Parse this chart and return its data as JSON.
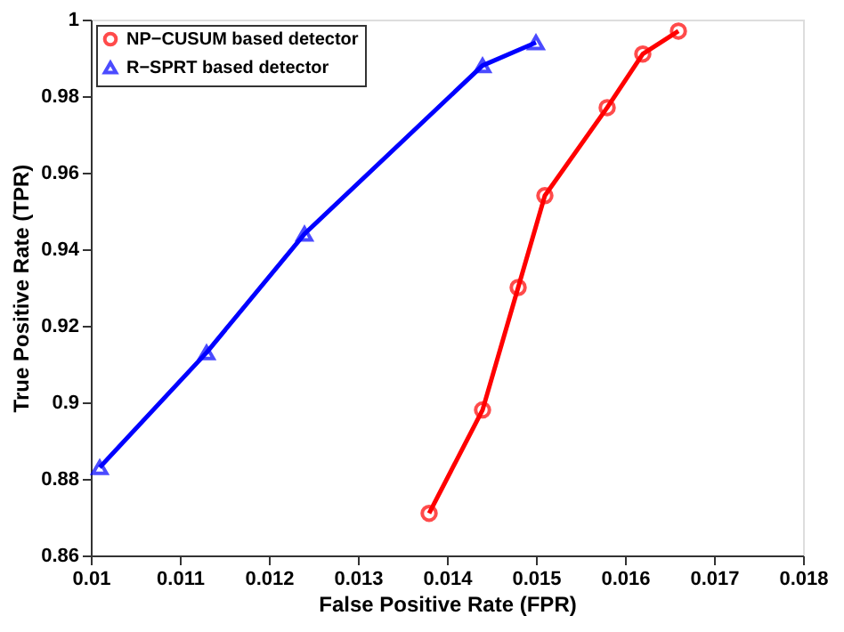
{
  "chart_data": {
    "type": "line",
    "xlabel": "False Positive Rate (FPR)",
    "ylabel": "True Positive Rate (TPR)",
    "series": [
      {
        "name": "NP−CUSUM based detector",
        "color": "#ff0000",
        "marker": "circle",
        "x": [
          0.0138,
          0.0144,
          0.0148,
          0.0151,
          0.0158,
          0.0162,
          0.0166
        ],
        "values": [
          0.871,
          0.898,
          0.93,
          0.954,
          0.977,
          0.991,
          0.997
        ]
      },
      {
        "name": "R−SPRT based detector",
        "color": "#0000ff",
        "marker": "triangle",
        "x": [
          0.0101,
          0.0113,
          0.0124,
          0.0144,
          0.015
        ],
        "values": [
          0.883,
          0.913,
          0.944,
          0.988,
          0.994
        ]
      }
    ],
    "xlim": [
      0.01,
      0.018
    ],
    "xticks": [
      0.01,
      0.011,
      0.012,
      0.013,
      0.014,
      0.015,
      0.016,
      0.017,
      0.018
    ],
    "ylim": [
      0.86,
      1
    ],
    "yticks": [
      0.86,
      0.88,
      0.9,
      0.92,
      0.94,
      0.96,
      0.98,
      1
    ],
    "grid": false,
    "legend": "top left",
    "line_style": "solid"
  }
}
